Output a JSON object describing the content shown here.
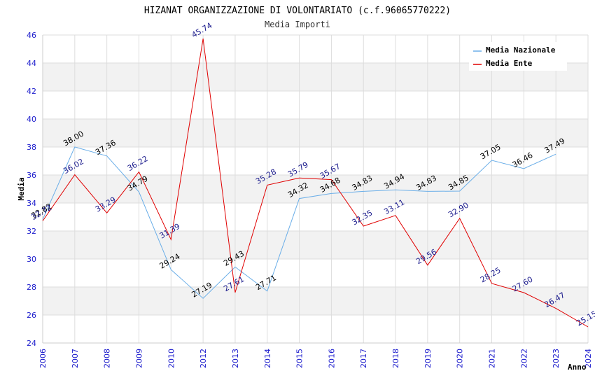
{
  "chart_data": {
    "type": "line",
    "title": "HIZANAT ORGANIZZAZIONE DI VOLONTARIATO (c.f.96065770222)",
    "subtitle": "Media Importi",
    "xlabel": "Anno",
    "ylabel": "Media",
    "ylim": [
      24,
      46
    ],
    "yticks": [
      "24",
      "26",
      "28",
      "30",
      "32",
      "34",
      "36",
      "38",
      "40",
      "42",
      "44",
      "46"
    ],
    "categories": [
      "2006",
      "2007",
      "2008",
      "2009",
      "2010",
      "2012",
      "2013",
      "2014",
      "2015",
      "2016",
      "2017",
      "2018",
      "2019",
      "2020",
      "2021",
      "2022",
      "2023",
      "2024"
    ],
    "legend_position": "top-right",
    "series": [
      {
        "name": "Media Nazionale",
        "color": "#6aaee8",
        "values": [
          32.82,
          38.0,
          37.36,
          34.79,
          29.24,
          27.19,
          29.43,
          27.71,
          34.32,
          34.68,
          34.83,
          34.94,
          34.83,
          34.85,
          37.05,
          36.46,
          37.49,
          null
        ],
        "labels": [
          "32.82",
          "38.00",
          "37.36",
          "34.79",
          "29.24",
          "27.19",
          "29.43",
          "27.71",
          "34.32",
          "34.68",
          "34.83",
          "34.94",
          "34.83",
          "34.85",
          "37.05",
          "36.46",
          "37.49",
          ""
        ]
      },
      {
        "name": "Media Ente",
        "color": "#e00000",
        "values": [
          32.72,
          36.02,
          33.29,
          36.22,
          31.39,
          45.74,
          27.61,
          35.28,
          35.79,
          35.67,
          32.35,
          33.11,
          29.56,
          32.9,
          28.25,
          27.6,
          26.47,
          25.15
        ],
        "labels": [
          "32.72",
          "36.02",
          "33.29",
          "36.22",
          "31.39",
          "45.74",
          "27.61",
          "35.28",
          "35.79",
          "35.67",
          "32.35",
          "33.11",
          "29.56",
          "32.90",
          "28.25",
          "27.60",
          "26.47",
          "25.15"
        ]
      }
    ]
  }
}
